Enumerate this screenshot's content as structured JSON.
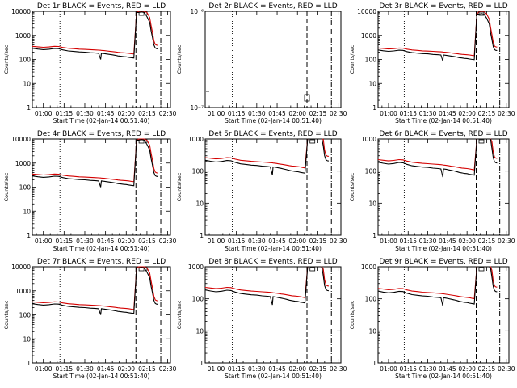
{
  "chart_data": {
    "type": "line",
    "layout": "3x3 grid",
    "series_legend": {
      "events": "BLACK = Events",
      "lld": "RED = LLD"
    },
    "colors": {
      "events": "#000000",
      "lld": "#d40000"
    },
    "x_range_minutes": [
      52,
      152
    ],
    "x_ticks": [
      {
        "min": 60,
        "label": "01:00"
      },
      {
        "min": 75,
        "label": "01:15"
      },
      {
        "min": 90,
        "label": "01:30"
      },
      {
        "min": 105,
        "label": "01:45"
      },
      {
        "min": 120,
        "label": "02:00"
      },
      {
        "min": 135,
        "label": "02:15"
      },
      {
        "min": 150,
        "label": "02:30"
      }
    ],
    "vertical_markers": {
      "dotted": 72,
      "dashed": 127,
      "dash_dot": 145
    },
    "profile": {
      "times": [
        52,
        56,
        60,
        64,
        68,
        71,
        74,
        78,
        82,
        86,
        90,
        94,
        98,
        100,
        101.5,
        102,
        104,
        106,
        108,
        110,
        112,
        114,
        116,
        118,
        120,
        122,
        124,
        125.5,
        127.5,
        129,
        131,
        133,
        135,
        137,
        138,
        139,
        140,
        141,
        142,
        143
      ],
      "events": [
        290,
        270,
        255,
        265,
        285,
        280,
        250,
        225,
        215,
        205,
        200,
        190,
        185,
        180,
        100,
        180,
        175,
        168,
        162,
        155,
        148,
        140,
        135,
        130,
        128,
        122,
        118,
        115,
        9000,
        9000,
        9500,
        9000,
        6000,
        3500,
        1500,
        800,
        400,
        300,
        280,
        275
      ],
      "lld": [
        350,
        335,
        320,
        330,
        350,
        345,
        315,
        290,
        280,
        268,
        262,
        255,
        248,
        244,
        240,
        238,
        232,
        225,
        218,
        212,
        205,
        198,
        192,
        188,
        185,
        180,
        172,
        168,
        9000,
        11000,
        12000,
        11500,
        9000,
        5500,
        2500,
        1300,
        600,
        420,
        390,
        385
      ]
    },
    "panels": [
      {
        "title": "Det 1r BLACK = Events, RED = LLD",
        "xlabel": "Start Time (02-Jan-14 00:51:40)",
        "ylabel": "Counts/sec",
        "ylim": [
          1,
          10000
        ],
        "y_ticks": [
          "1",
          "10",
          "100",
          "1000",
          "10000"
        ],
        "scale": 1.0,
        "empty": false
      },
      {
        "title": "Det 2r BLACK = Events, RED = LLD",
        "xlabel": "Start Time (02-Jan-14 00:51:40)",
        "ylabel": "Counts/sec",
        "ylim": [
          1e-07,
          1e-06
        ],
        "y_ticks": [
          "10⁻⁷",
          "10⁻⁶"
        ],
        "scale": 1.0,
        "empty": true
      },
      {
        "title": "Det 3r BLACK = Events, RED = LLD",
        "xlabel": "Start Time (02-Jan-14 00:51:40)",
        "ylabel": "Counts/sec",
        "ylim": [
          1,
          10000
        ],
        "y_ticks": [
          "1",
          "10",
          "100",
          "1000",
          "10000"
        ],
        "scale": 0.85,
        "empty": false
      },
      {
        "title": "Det 4r BLACK = Events, RED = LLD",
        "xlabel": "Start Time (02-Jan-14 00:51:40)",
        "ylabel": "Counts/sec",
        "ylim": [
          1,
          10000
        ],
        "y_ticks": [
          "1",
          "10",
          "100",
          "1000",
          "10000"
        ],
        "scale": 1.0,
        "empty": false
      },
      {
        "title": "Det 5r BLACK = Events, RED = LLD",
        "xlabel": "Start Time (02-Jan-14 00:51:40)",
        "ylabel": "Counts/sec",
        "ylim": [
          1,
          1000
        ],
        "y_ticks": [
          "1",
          "10",
          "100",
          "1000"
        ],
        "scale": 0.75,
        "empty": false
      },
      {
        "title": "Det 6r BLACK = Events, RED = LLD",
        "xlabel": "Start Time (02-Jan-14 00:51:40)",
        "ylabel": "Counts/sec",
        "ylim": [
          1,
          1000
        ],
        "y_ticks": [
          "1",
          "10",
          "100",
          "1000"
        ],
        "scale": 0.65,
        "empty": false
      },
      {
        "title": "Det 7r BLACK = Events, RED = LLD",
        "xlabel": "Start Time (02-Jan-14 00:51:40)",
        "ylabel": "Counts/sec",
        "ylim": [
          1,
          10000
        ],
        "y_ticks": [
          "1",
          "10",
          "100",
          "1000",
          "10000"
        ],
        "scale": 1.0,
        "empty": false
      },
      {
        "title": "Det 8r BLACK = Events, RED = LLD",
        "xlabel": "Start Time (02-Jan-14 00:51:40)",
        "ylabel": "Counts/sec",
        "ylim": [
          1,
          1000
        ],
        "y_ticks": [
          "1",
          "10",
          "100",
          "1000"
        ],
        "scale": 0.65,
        "empty": false
      },
      {
        "title": "Det 9r BLACK = Events, RED = LLD",
        "xlabel": "Start Time (02-Jan-14 00:51:40)",
        "ylabel": "Counts/sec",
        "ylim": [
          1,
          1000
        ],
        "y_ticks": [
          "1",
          "10",
          "100",
          "1000"
        ],
        "scale": 0.6,
        "empty": false
      }
    ]
  }
}
